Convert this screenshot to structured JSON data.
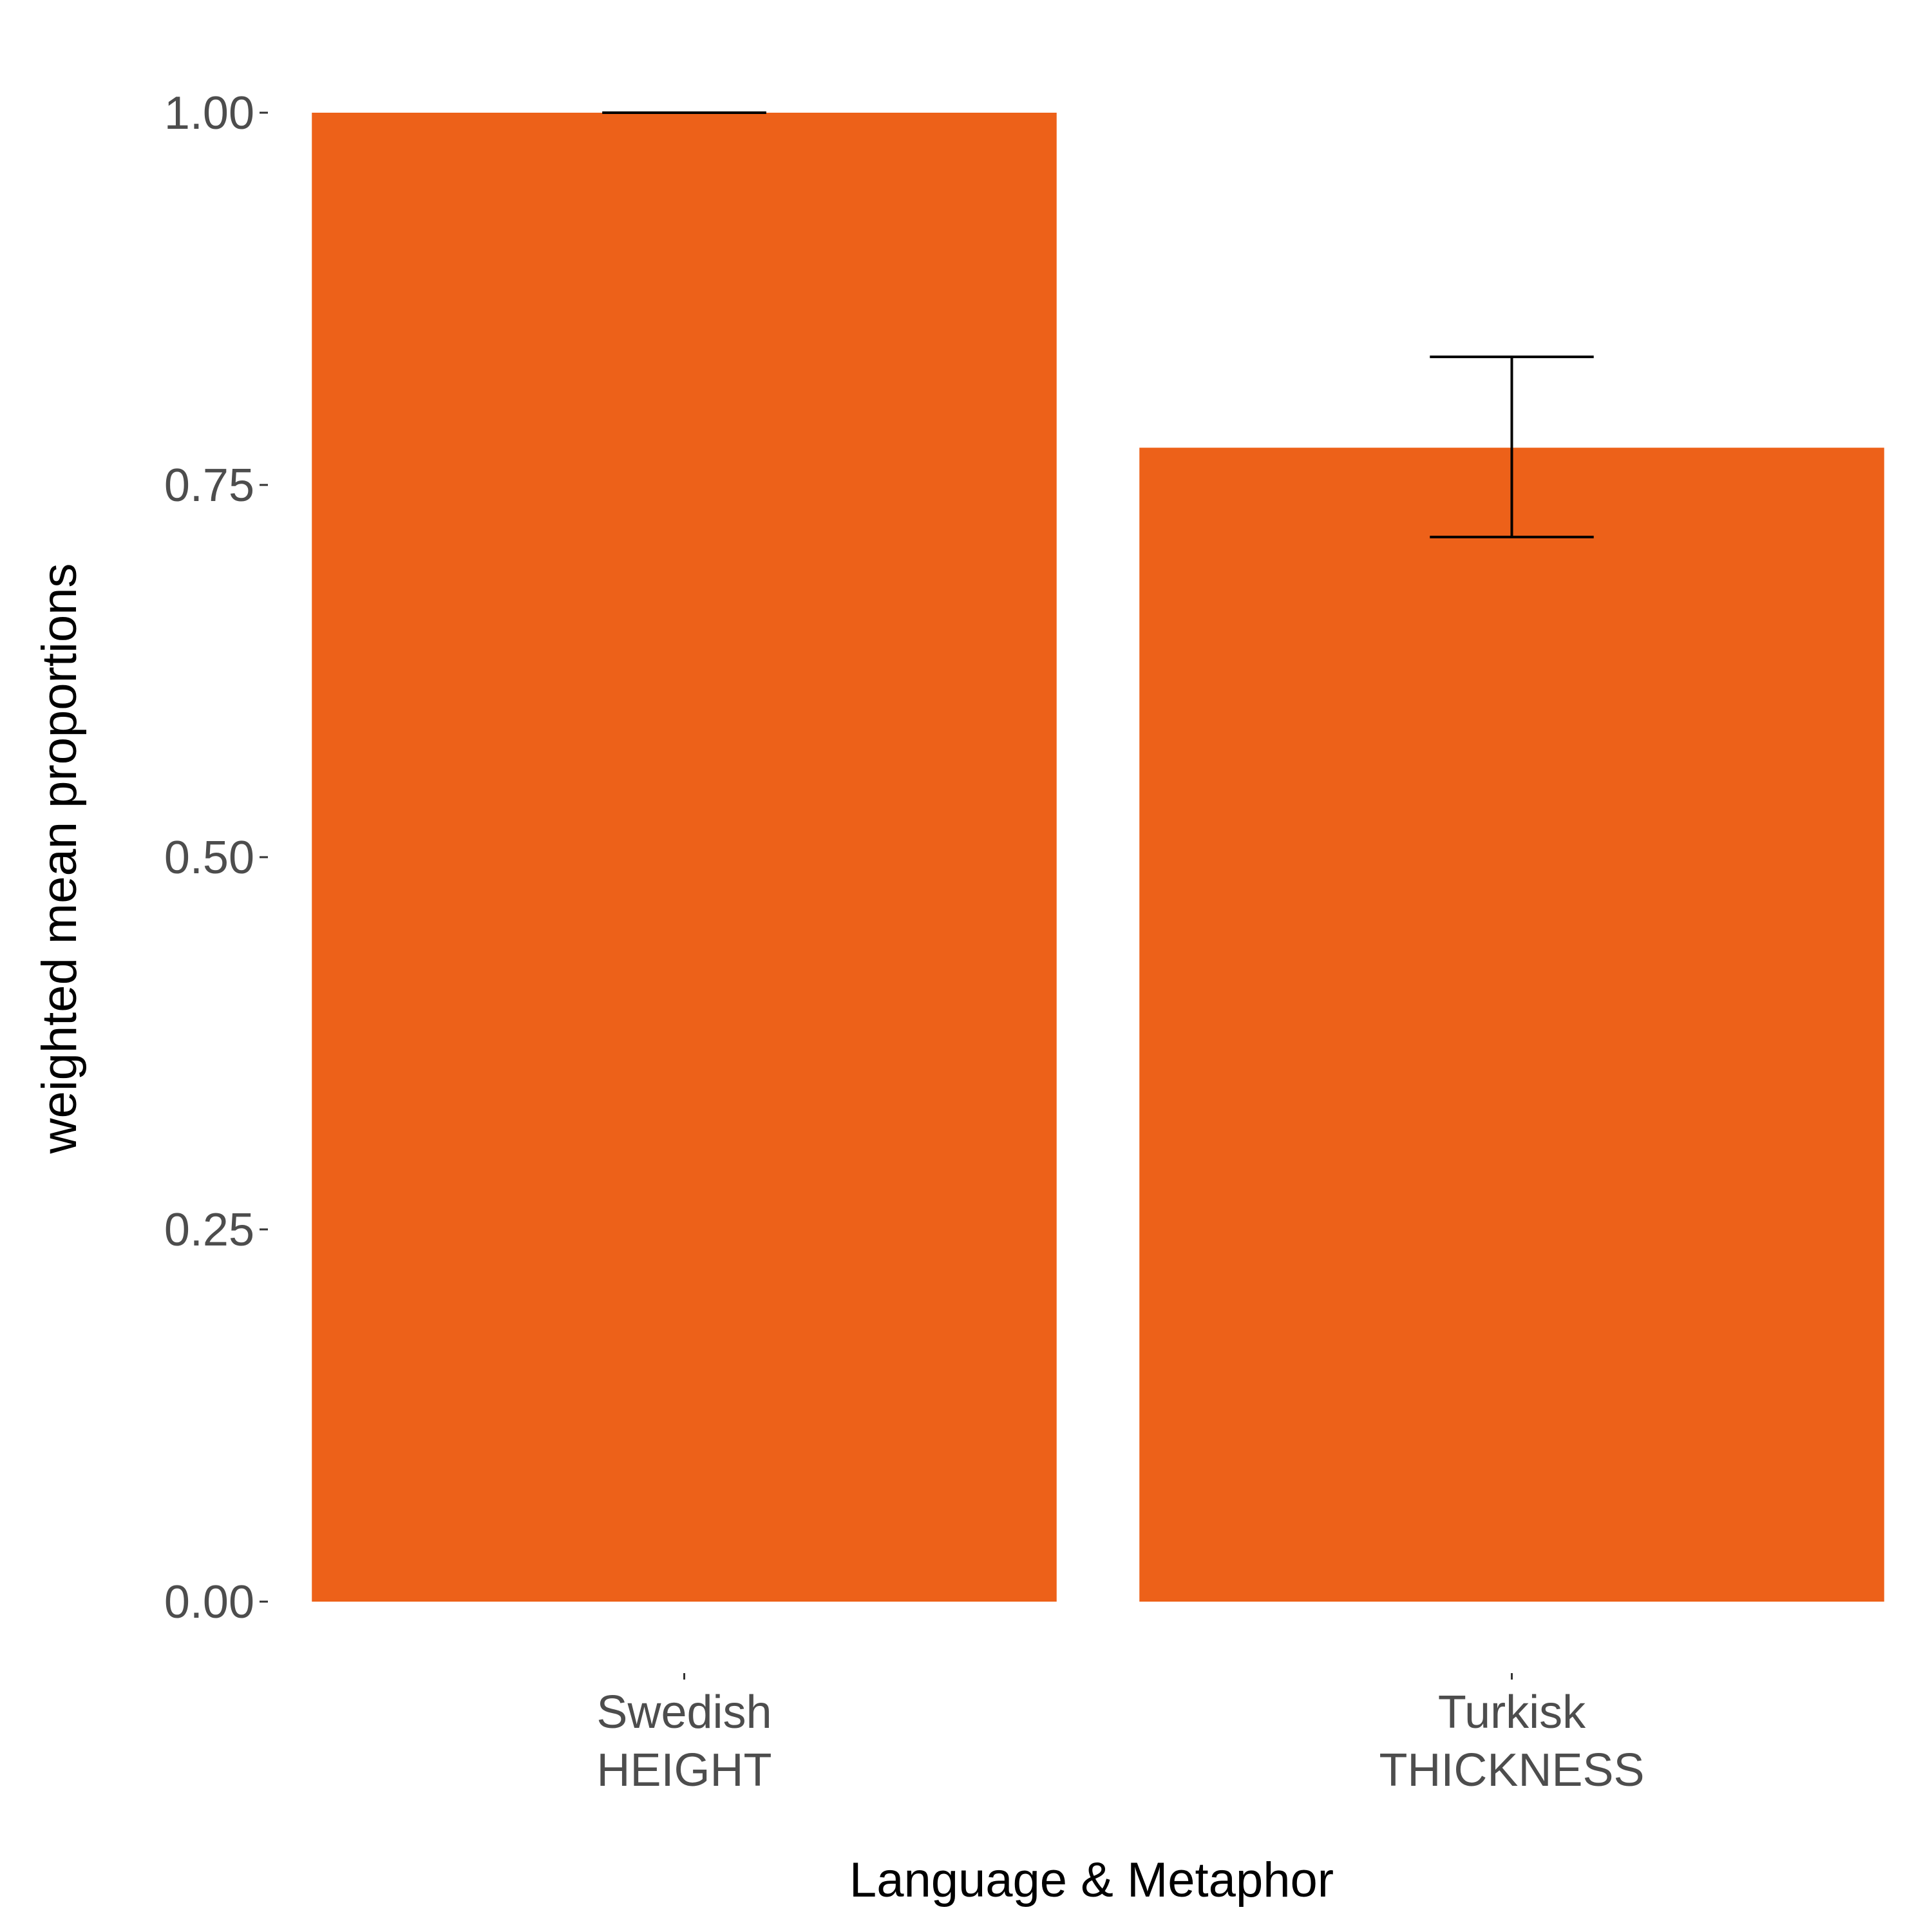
{
  "chart_data": {
    "type": "bar",
    "xlabel": "Language & Metaphor",
    "ylabel": "weighted mean proportions",
    "ylim": [
      0,
      1
    ],
    "yticks": [
      "0.00",
      "0.25",
      "0.50",
      "0.75",
      "1.00"
    ],
    "ytick_values": [
      0,
      0.25,
      0.5,
      0.75,
      1.0
    ],
    "categories": [
      {
        "line1": "Swedish",
        "line2": "HEIGHT"
      },
      {
        "line1": "Turkisk",
        "line2": "THICKNESS"
      }
    ],
    "values": [
      1.0,
      0.775
    ],
    "error_bars": [
      {
        "low": 1.0,
        "high": 1.0
      },
      {
        "low": 0.715,
        "high": 0.836
      }
    ],
    "bar_color": "#ED6119",
    "error_color": "#000000",
    "grid": false,
    "legend": "none"
  }
}
